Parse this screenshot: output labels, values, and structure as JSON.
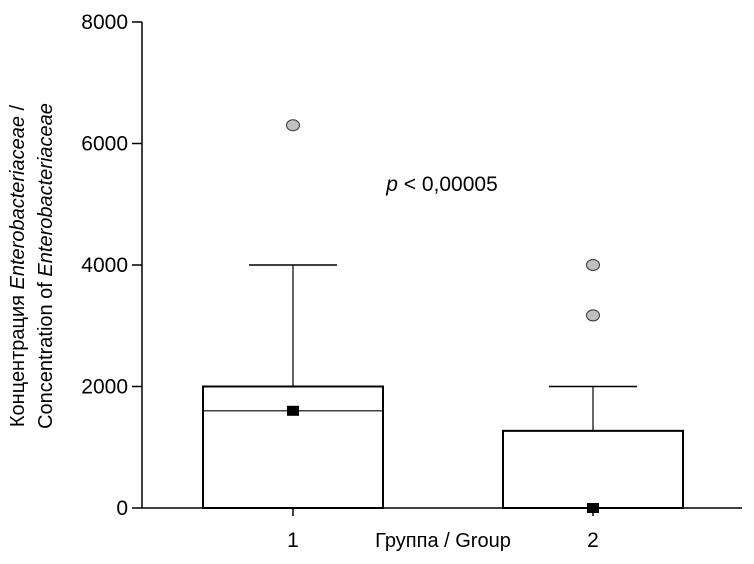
{
  "chart_data": {
    "type": "box",
    "ylim": [
      0,
      8000
    ],
    "yticks": [
      0,
      2000,
      4000,
      6000,
      8000
    ],
    "ytick_labels": [
      "0",
      "2000",
      "4000",
      "6000",
      "8000"
    ],
    "grid": false,
    "xlabel": "Группа / Group",
    "ylabel": {
      "line1": [
        "Концентрация ",
        "Enterobacteriaceae",
        " /"
      ],
      "line2": [
        "Concentration  of ",
        "Enterobacteriaceae"
      ]
    },
    "annotation": {
      "italic": "p",
      "text": " < 0,00005"
    },
    "categories": [
      "1",
      "2"
    ],
    "boxes": [
      {
        "category": "1",
        "q1": 0,
        "median": 1600,
        "q3": 2000,
        "whisker_high": 4000,
        "marker": 1600,
        "outliers": [
          6300
        ]
      },
      {
        "category": "2",
        "q1": 0,
        "median": 0,
        "q3": 1270,
        "whisker_high": 2000,
        "marker": 0,
        "outliers": [
          3170,
          4000
        ]
      }
    ]
  }
}
